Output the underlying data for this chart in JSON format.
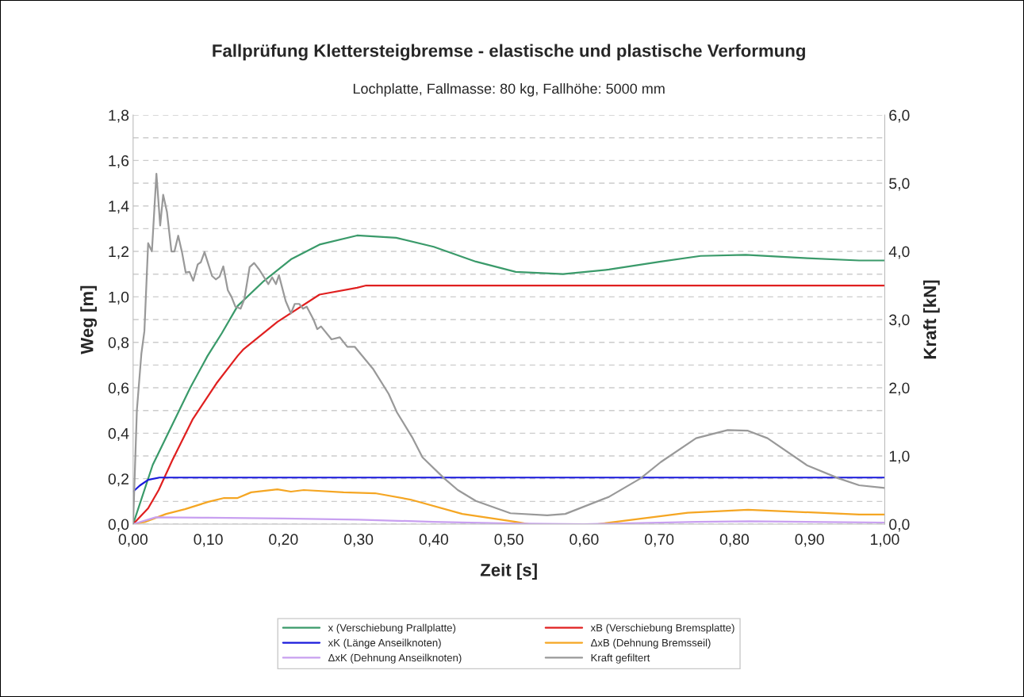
{
  "chart_data": {
    "type": "line",
    "title": "Fallprüfung Klettersteigbremse - elastische und plastische Verformung",
    "subtitle": "Lochplatte, Fallmasse: 80 kg, Fallhöhe: 5000 mm",
    "xlabel": "Zeit [s]",
    "ylabel": "Weg [m]",
    "y2label": "Kraft [kN]",
    "xlim": [
      0,
      1.0
    ],
    "xticks": [
      {
        "value": 0,
        "label": "0,00"
      },
      {
        "value": 0.1,
        "label": "0,10"
      },
      {
        "value": 0.2,
        "label": "0,20"
      },
      {
        "value": 0.3,
        "label": "0,30"
      },
      {
        "value": 0.4,
        "label": "0,40"
      },
      {
        "value": 0.5,
        "label": "0,50"
      },
      {
        "value": 0.6,
        "label": "0,60"
      },
      {
        "value": 0.7,
        "label": "0,70"
      },
      {
        "value": 0.8,
        "label": "0,80"
      },
      {
        "value": 0.9,
        "label": "0,90"
      },
      {
        "value": 1.0,
        "label": "1,00"
      }
    ],
    "ylim": [
      0,
      1.8
    ],
    "yticks": [
      {
        "value": 0,
        "label": "0,0"
      },
      {
        "value": 0.1,
        "label": null
      },
      {
        "value": 0.2,
        "label": "0,2"
      },
      {
        "value": 0.3,
        "label": null
      },
      {
        "value": 0.4,
        "label": "0,4"
      },
      {
        "value": 0.5,
        "label": null
      },
      {
        "value": 0.6,
        "label": "0,6"
      },
      {
        "value": 0.7,
        "label": null
      },
      {
        "value": 0.8,
        "label": "0,8"
      },
      {
        "value": 0.9,
        "label": null
      },
      {
        "value": 1.0,
        "label": "1,0"
      },
      {
        "value": 1.1,
        "label": null
      },
      {
        "value": 1.2,
        "label": "1,2"
      },
      {
        "value": 1.3,
        "label": null
      },
      {
        "value": 1.4,
        "label": "1,4"
      },
      {
        "value": 1.5,
        "label": null
      },
      {
        "value": 1.6,
        "label": "1,6"
      },
      {
        "value": 1.7,
        "label": null
      },
      {
        "value": 1.8,
        "label": "1,8"
      }
    ],
    "y2lim": [
      0,
      6.0
    ],
    "y2ticks": [
      {
        "value": 0,
        "label": "0,0"
      },
      {
        "value": 1.0,
        "label": "1,0"
      },
      {
        "value": 2.0,
        "label": "2,0"
      },
      {
        "value": 3.0,
        "label": "3,0"
      },
      {
        "value": 4.0,
        "label": "4,0"
      },
      {
        "value": 5.0,
        "label": "5,0"
      },
      {
        "value": 6.0,
        "label": "6,0"
      }
    ],
    "grid": "y",
    "legend": "bottom",
    "line_style": "solid",
    "marker": "none",
    "series": [
      {
        "name": "x (Verschiebung Prallplatte)",
        "color": "#3a9a6a",
        "x": [
          0,
          0.026,
          0.076,
          0.099,
          0.118,
          0.139,
          0.174,
          0.21,
          0.248,
          0.298,
          0.35,
          0.4,
          0.456,
          0.509,
          0.572,
          0.633,
          0.702,
          0.755,
          0.815,
          0.897,
          0.966,
          1.0
        ],
        "values": [
          0,
          0.26,
          0.6,
          0.74,
          0.84,
          0.96,
          1.07,
          1.165,
          1.23,
          1.27,
          1.26,
          1.22,
          1.155,
          1.11,
          1.1,
          1.12,
          1.155,
          1.18,
          1.185,
          1.17,
          1.16,
          1.16
        ]
      },
      {
        "name": "xB (Verschiebung Bremsplatte)",
        "color": "#e02020",
        "x": [
          0,
          0.02,
          0.034,
          0.052,
          0.079,
          0.111,
          0.139,
          0.147,
          0.192,
          0.248,
          0.298,
          0.31,
          1.0
        ],
        "values": [
          0,
          0.07,
          0.15,
          0.28,
          0.46,
          0.62,
          0.74,
          0.77,
          0.89,
          1.01,
          1.04,
          1.05,
          1.05
        ]
      },
      {
        "name": "xK (Länge Anseilknoten)",
        "color": "#1a1adc",
        "x": [
          0,
          0.009,
          0.02,
          0.035,
          1.0
        ],
        "values": [
          0.143,
          0.17,
          0.195,
          0.205,
          0.205
        ]
      },
      {
        "name": "ΔxB (Dehnung Bremsseil)",
        "color": "#f5a623",
        "x": [
          0,
          0.016,
          0.044,
          0.069,
          0.1,
          0.121,
          0.139,
          0.157,
          0.192,
          0.21,
          0.227,
          0.28,
          0.322,
          0.369,
          0.438,
          0.509,
          0.527,
          0.618,
          0.738,
          0.818,
          0.913,
          0.966,
          1.0
        ],
        "values": [
          0,
          0.01,
          0.045,
          0.066,
          0.098,
          0.115,
          0.115,
          0.14,
          0.153,
          0.143,
          0.15,
          0.14,
          0.136,
          0.108,
          0.045,
          0.01,
          0,
          0,
          0.05,
          0.063,
          0.05,
          0.042,
          0.042
        ]
      },
      {
        "name": "ΔxK (Dehnung Anseilknoten)",
        "color": "#c8a0f0",
        "x": [
          0,
          0.03,
          0.1,
          0.2,
          0.3,
          0.4,
          0.5,
          0.6,
          0.75,
          0.82,
          0.95,
          1.0
        ],
        "values": [
          0,
          0.03,
          0.028,
          0.025,
          0.02,
          0.01,
          0.003,
          0,
          0.01,
          0.013,
          0.008,
          0.007
        ]
      },
      {
        "name": "Kraft gefiltert",
        "color": "#999999",
        "axis": "y2",
        "x": [
          0,
          0.005,
          0.011,
          0.015,
          0.02,
          0.025,
          0.031,
          0.036,
          0.04,
          0.045,
          0.051,
          0.055,
          0.06,
          0.065,
          0.07,
          0.075,
          0.08,
          0.086,
          0.09,
          0.095,
          0.105,
          0.11,
          0.115,
          0.12,
          0.126,
          0.131,
          0.136,
          0.143,
          0.148,
          0.155,
          0.161,
          0.168,
          0.18,
          0.185,
          0.19,
          0.194,
          0.203,
          0.21,
          0.215,
          0.221,
          0.226,
          0.231,
          0.24,
          0.245,
          0.25,
          0.264,
          0.275,
          0.285,
          0.295,
          0.319,
          0.34,
          0.351,
          0.372,
          0.385,
          0.414,
          0.432,
          0.456,
          0.502,
          0.551,
          0.575,
          0.633,
          0.675,
          0.702,
          0.749,
          0.791,
          0.818,
          0.844,
          0.897,
          0.939,
          0.966,
          1.0
        ],
        "values": [
          0,
          1.67,
          2.5,
          2.83,
          4.12,
          4.0,
          5.14,
          4.38,
          4.83,
          4.58,
          4.0,
          4.0,
          4.23,
          3.99,
          3.69,
          3.7,
          3.57,
          3.81,
          3.84,
          3.99,
          3.64,
          3.59,
          3.63,
          3.78,
          3.43,
          3.33,
          3.19,
          3.16,
          3.3,
          3.77,
          3.83,
          3.73,
          3.52,
          3.62,
          3.52,
          3.65,
          3.27,
          3.09,
          3.23,
          3.23,
          3.16,
          3.19,
          3.0,
          2.86,
          2.9,
          2.71,
          2.74,
          2.6,
          2.6,
          2.28,
          1.91,
          1.64,
          1.26,
          0.98,
          0.67,
          0.5,
          0.34,
          0.16,
          0.13,
          0.15,
          0.4,
          0.67,
          0.91,
          1.26,
          1.38,
          1.37,
          1.26,
          0.86,
          0.67,
          0.57,
          0.53
        ]
      }
    ]
  }
}
